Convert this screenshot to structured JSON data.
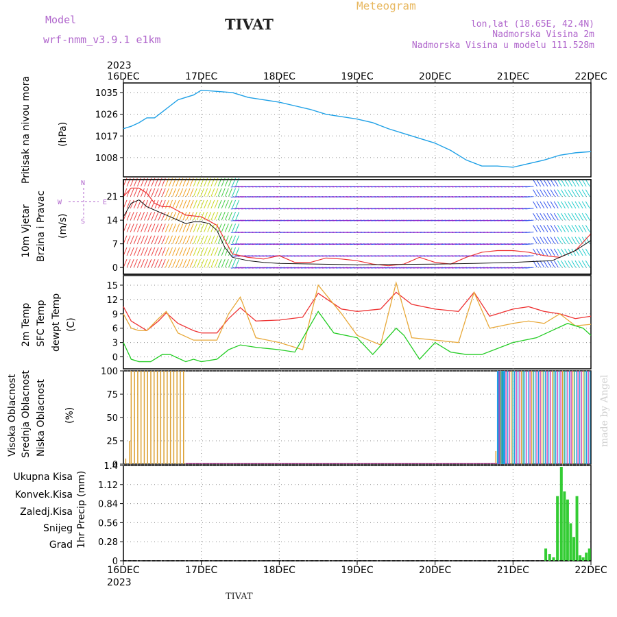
{
  "header": {
    "model_label": "Model",
    "model_name": "wrf-nmm_v3.9.1 e1km",
    "title": "TIVAT",
    "meteogram": "Meteogram",
    "lonlat": "lon,lat (18.65E, 42.4N)",
    "elevation": "Nadmorska Visina 2m",
    "model_elevation": "Nadmorska Visina u modelu 111.528m",
    "year_top": "2023",
    "year_bottom": "2023",
    "footer": "TIVAT",
    "watermark": "made by Angel"
  },
  "colors": {
    "pressure": "#1ea0e6",
    "t2m": "#ee3333",
    "sfc": "#e8a838",
    "dew": "#22cc22",
    "wind_dots": "#111111",
    "wind_gust": "#ee3333",
    "high_cloud": "#1ea0e6",
    "mid_cloud": "#dca032",
    "low_cloud": "#cc33aa",
    "precip_total": "#33cc33",
    "axis_label_purple": "#b066cc",
    "meteogram_orange": "#e8b860"
  },
  "chart_data": [
    {
      "type": "line",
      "panel": "pressure",
      "ylabel_colored": "Pritisak na nivou mora",
      "ylabel_units": "(hPa)",
      "yticks": [
        1008,
        1017,
        1026,
        1035
      ],
      "ylim": [
        1000,
        1039
      ],
      "grid": true,
      "xticks": [
        "16DEC",
        "17DEC",
        "18DEC",
        "19DEC",
        "20DEC",
        "21DEC",
        "22DEC"
      ],
      "series": [
        {
          "name": "Pritisak na nivou mora",
          "x": [
            0,
            0.1,
            0.2,
            0.3,
            0.4,
            0.5,
            0.6,
            0.7,
            0.8,
            0.9,
            1.0,
            1.2,
            1.4,
            1.6,
            1.8,
            2.0,
            2.2,
            2.4,
            2.6,
            2.8,
            3.0,
            3.2,
            3.4,
            3.6,
            3.8,
            4.0,
            4.2,
            4.4,
            4.6,
            4.8,
            5.0,
            5.2,
            5.4,
            5.6,
            5.8,
            6.0
          ],
          "values": [
            1020,
            1021,
            1022.5,
            1024.5,
            1024.5,
            1027,
            1029.5,
            1032,
            1033,
            1034,
            1036,
            1035.5,
            1035,
            1033,
            1032,
            1031,
            1029.5,
            1028,
            1026,
            1025,
            1024,
            1022.5,
            1020,
            1018,
            1016,
            1014,
            1011,
            1007,
            1004.5,
            1004.5,
            1004,
            1005.5,
            1007,
            1009,
            1010,
            1010.5
          ]
        }
      ]
    },
    {
      "type": "line",
      "panel": "wind",
      "ylabel_colored_1": "10m Vjetar",
      "ylabel_colored_2": "Brzina i Pravac",
      "ylabel_units": "(m/s)",
      "compass": [
        "N",
        "W",
        "E",
        "S"
      ],
      "yticks": [
        0,
        7,
        14,
        21
      ],
      "ylim": [
        -2,
        26
      ],
      "grid": true,
      "series": [
        {
          "name": "Brzina",
          "x": [
            0,
            0.1,
            0.2,
            0.3,
            0.4,
            0.5,
            0.6,
            0.7,
            0.8,
            0.9,
            1.0,
            1.1,
            1.2,
            1.3,
            1.4,
            1.5,
            1.6,
            1.8,
            2.0,
            2.5,
            3.0,
            3.5,
            4.0,
            4.5,
            5.0,
            5.5,
            5.8,
            6.0
          ],
          "values": [
            15,
            19,
            20,
            18,
            17,
            16,
            15,
            14,
            13,
            13.5,
            13.5,
            13,
            11,
            6,
            3,
            2.5,
            2,
            1.5,
            1.2,
            1.0,
            0.8,
            0.9,
            1.0,
            1.2,
            1.5,
            2,
            5,
            8
          ]
        },
        {
          "name": "Udar",
          "x": [
            0,
            0.1,
            0.2,
            0.3,
            0.4,
            0.5,
            0.6,
            0.8,
            1.0,
            1.2,
            1.4,
            1.6,
            1.8,
            2.0,
            2.2,
            2.4,
            2.6,
            2.8,
            3.0,
            3.2,
            3.4,
            3.6,
            3.8,
            4.0,
            4.2,
            4.4,
            4.6,
            4.8,
            5.0,
            5.2,
            5.4,
            5.6,
            5.8,
            6.0
          ],
          "values": [
            21,
            23.5,
            23.5,
            22,
            19,
            18,
            18,
            15.5,
            15,
            12.5,
            4,
            3,
            2.5,
            3.5,
            1.5,
            1.5,
            2.8,
            2.5,
            2,
            1,
            0.5,
            1,
            3,
            1.5,
            1,
            3,
            4.5,
            5,
            5,
            4.5,
            3.5,
            3,
            5,
            10
          ]
        }
      ]
    },
    {
      "type": "line",
      "panel": "temperature",
      "ylabel_colored_1": "2m Temp",
      "ylabel_colored_2": "SFC Temp",
      "ylabel_colored_3": "dewpt Temp",
      "ylabel_units": "(C)",
      "yticks": [
        0,
        3,
        6,
        9,
        12,
        15
      ],
      "ylim": [
        -2.5,
        17
      ],
      "grid": true,
      "series": [
        {
          "name": "2m Temp",
          "x": [
            0,
            0.1,
            0.2,
            0.3,
            0.45,
            0.55,
            0.7,
            0.9,
            1.0,
            1.2,
            1.35,
            1.5,
            1.7,
            2.0,
            2.3,
            2.5,
            2.8,
            3.0,
            3.3,
            3.5,
            3.7,
            4.0,
            4.3,
            4.5,
            4.7,
            5.0,
            5.2,
            5.4,
            5.6,
            5.8,
            6.0
          ],
          "values": [
            10.5,
            7.5,
            6.5,
            5.5,
            7.5,
            9.2,
            7,
            5.5,
            5,
            5,
            8,
            10.3,
            7.5,
            7.7,
            8.3,
            13.3,
            10,
            9.5,
            10,
            13.5,
            11,
            10,
            9.5,
            13.5,
            8.5,
            10,
            10.5,
            9.5,
            9,
            8,
            8.5
          ]
        },
        {
          "name": "SFC Temp",
          "x": [
            0,
            0.1,
            0.2,
            0.3,
            0.45,
            0.55,
            0.7,
            0.9,
            1.0,
            1.2,
            1.35,
            1.5,
            1.7,
            2.0,
            2.3,
            2.5,
            2.8,
            3.0,
            3.3,
            3.5,
            3.7,
            4.0,
            4.3,
            4.5,
            4.7,
            5.0,
            5.2,
            5.4,
            5.6,
            5.8,
            6.0
          ],
          "values": [
            9,
            6,
            5.5,
            5.5,
            8,
            9.5,
            5,
            3.5,
            3.5,
            3.5,
            9,
            12.5,
            4,
            3,
            1.5,
            15,
            9,
            4.5,
            2.5,
            15.5,
            4,
            3.5,
            3,
            13.5,
            6,
            7,
            7.5,
            7,
            9,
            6.5,
            6.8
          ]
        },
        {
          "name": "dewpt Temp",
          "x": [
            0,
            0.1,
            0.2,
            0.35,
            0.5,
            0.6,
            0.8,
            0.9,
            1.0,
            1.2,
            1.35,
            1.5,
            1.7,
            2.0,
            2.2,
            2.5,
            2.7,
            3.0,
            3.2,
            3.5,
            3.6,
            3.8,
            4.0,
            4.2,
            4.4,
            4.6,
            5.0,
            5.3,
            5.5,
            5.7,
            5.9,
            6.0
          ],
          "values": [
            3,
            -0.5,
            -1,
            -1,
            0.5,
            0.5,
            -1,
            -0.5,
            -1,
            -0.5,
            1.5,
            2.5,
            2,
            1.5,
            1,
            9.5,
            5,
            4,
            0.5,
            6,
            4.5,
            -0.5,
            3,
            1,
            0.5,
            0.5,
            3,
            4,
            5.5,
            7,
            6,
            4.5
          ]
        }
      ]
    },
    {
      "type": "bar",
      "panel": "cloud",
      "ylabel_colored_1": "Visoka Oblacnost",
      "ylabel_colored_2": "Srednja Oblacnost",
      "ylabel_colored_3": "Niska Oblacnost",
      "ylabel_units": "(%)",
      "yticks": [
        0,
        25,
        50,
        75,
        100
      ],
      "ylim": [
        0,
        100
      ],
      "grid": true,
      "series": [
        {
          "name": "Srednja Oblacnost",
          "x_start": 0.1,
          "x_end": 0.8,
          "values": [
            100
          ]
        },
        {
          "name": "Visoka Oblacnost",
          "x_start": 4.8,
          "x_end": 6.0,
          "values": [
            100
          ]
        },
        {
          "name": "Niska Oblacnost",
          "x_start": 4.85,
          "x_end": 6.0,
          "values": [
            100
          ]
        }
      ]
    },
    {
      "type": "bar",
      "panel": "precip",
      "legend": [
        "Ukupna Kisa",
        "Konvek.Kisa",
        "Zaledj.Kisa",
        "Snijeg",
        "Grad"
      ],
      "ylabel_units": "1hr Precip (mm)",
      "yticks": [
        0,
        0.28,
        0.56,
        0.84,
        1.12,
        1.4
      ],
      "ylim": [
        0,
        1.4
      ],
      "grid": true,
      "series": [
        {
          "name": "Ukupna Kisa",
          "x": [
            5.42,
            5.47,
            5.52,
            5.57,
            5.62,
            5.66,
            5.7,
            5.74,
            5.78,
            5.82,
            5.86,
            5.9,
            5.94,
            5.98
          ],
          "values": [
            0.18,
            0.1,
            0.05,
            0.95,
            1.38,
            1.02,
            0.9,
            0.55,
            0.35,
            0.95,
            0.08,
            0.05,
            0.12,
            0.18
          ]
        }
      ]
    }
  ]
}
